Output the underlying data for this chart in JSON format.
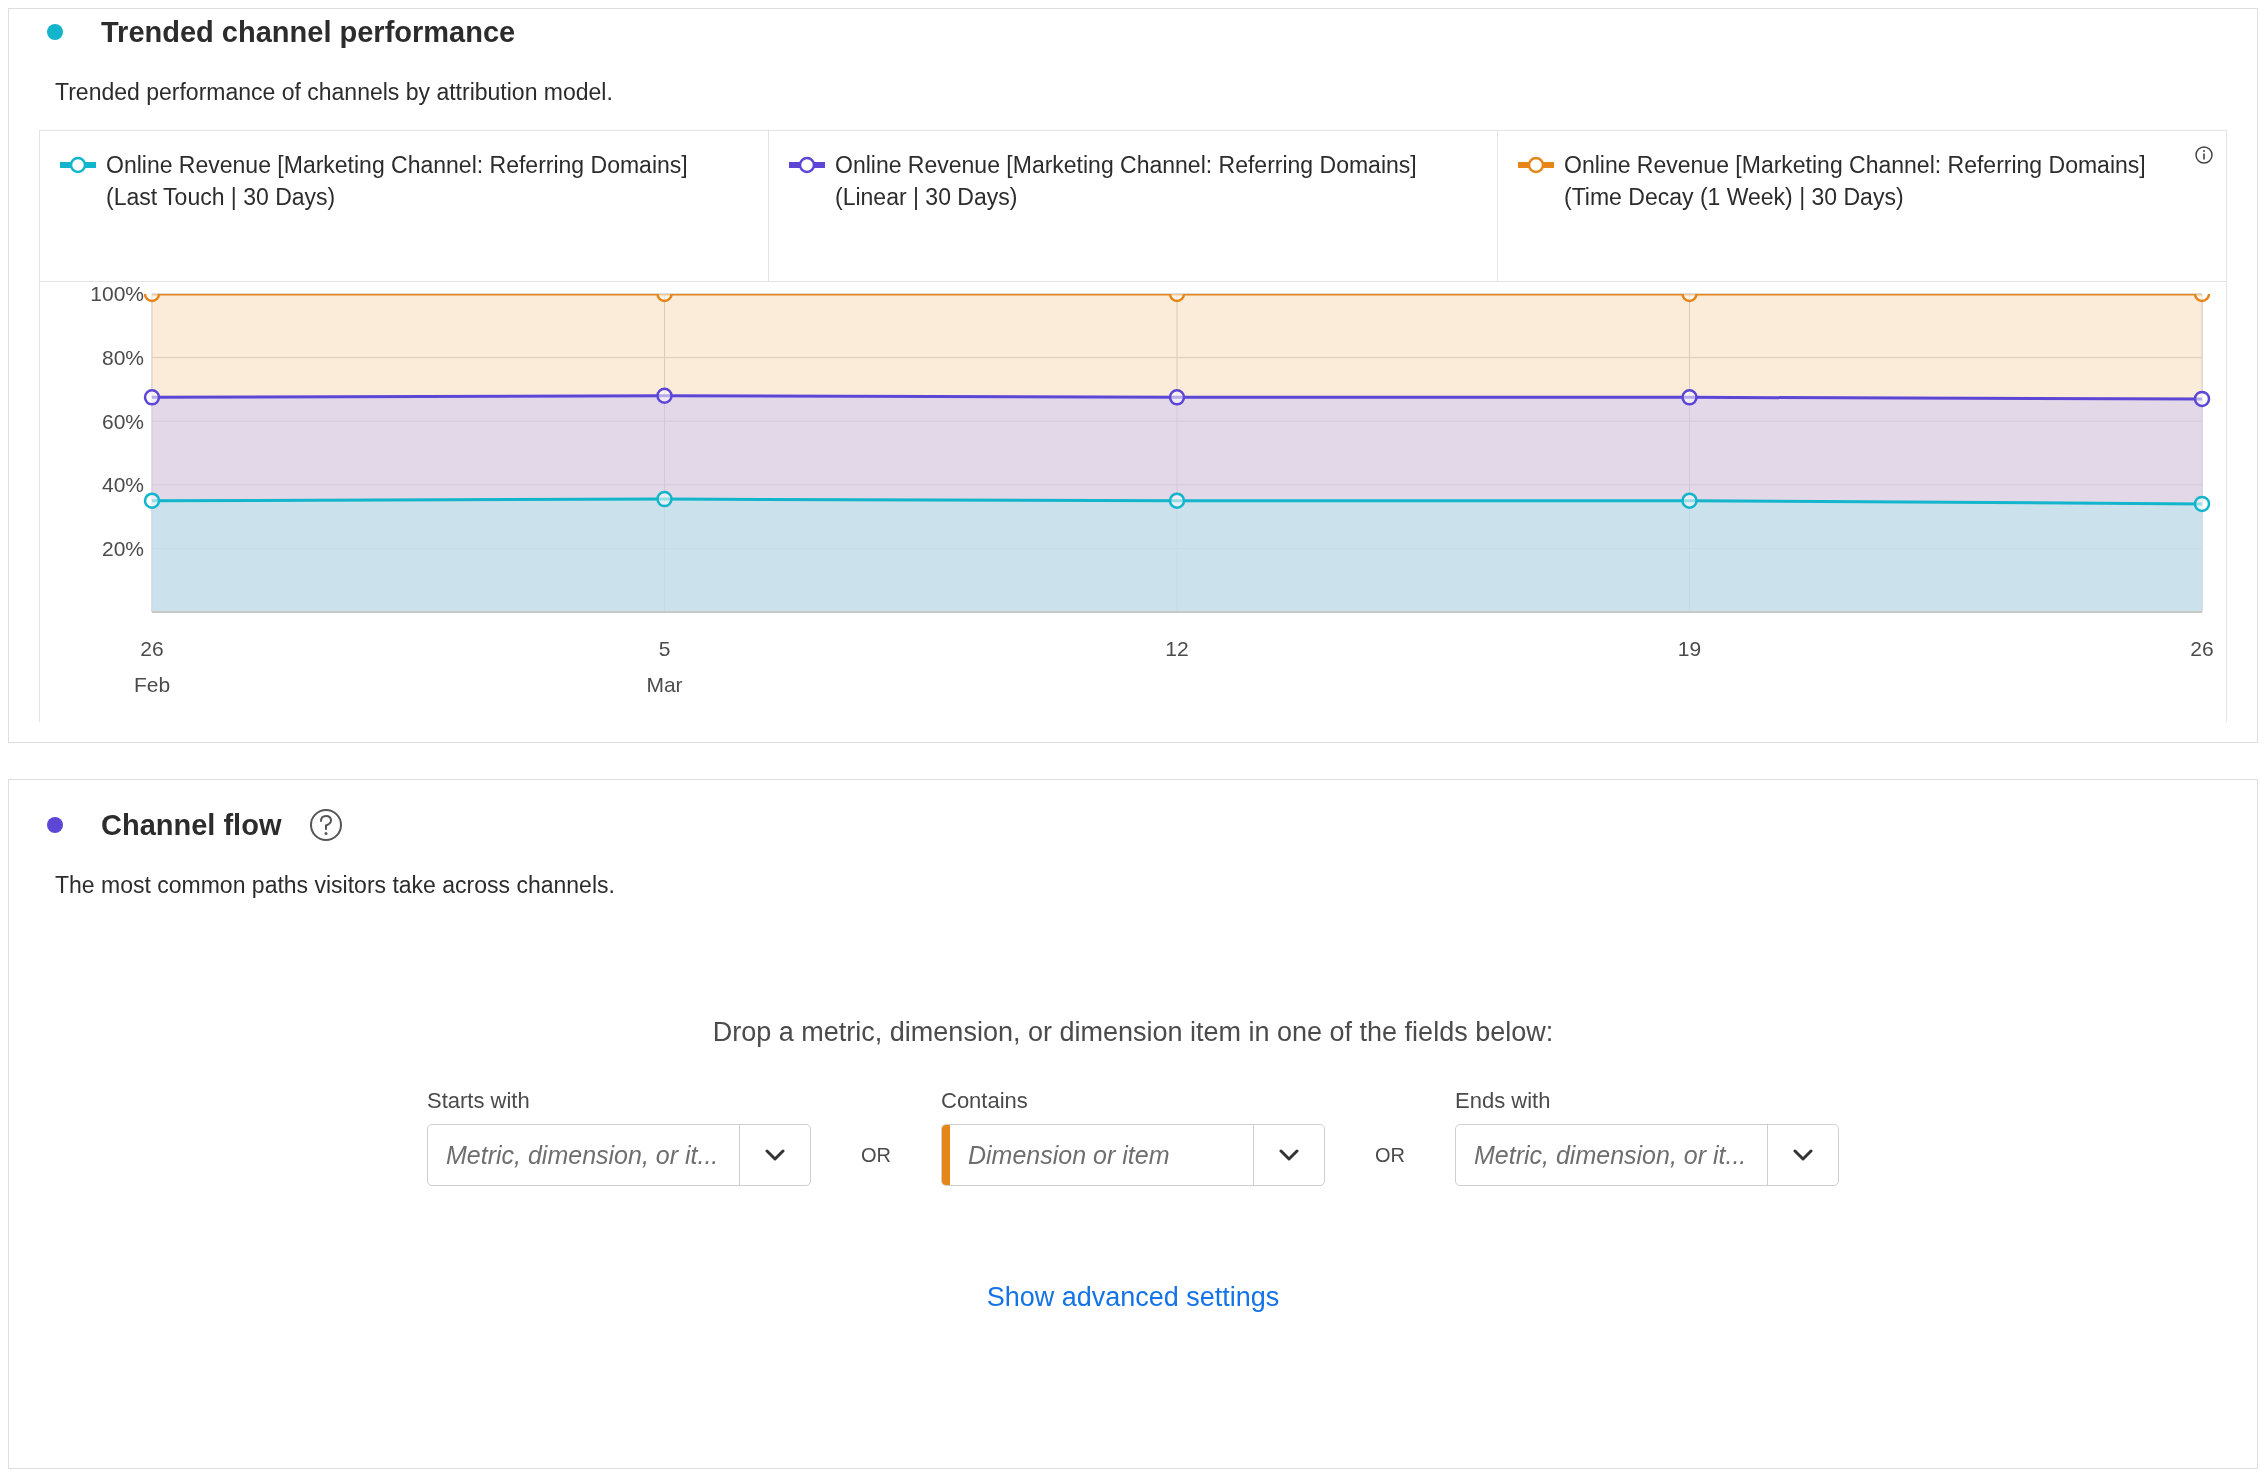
{
  "chart_data": [
    {
      "type": "area",
      "title": "Trended channel performance",
      "subtitle": "Trended performance of channels by attribution model.",
      "categories": [
        "26\nFeb",
        "5\nMar",
        "12",
        "19",
        "26"
      ],
      "series": [
        {
          "name": "Online Revenue [Marketing Channel: Referring Domains] (Last Touch | 30 Days)",
          "color": "#12b5cb",
          "values": [
            35,
            35.5,
            35,
            35,
            34
          ]
        },
        {
          "name": "Online Revenue [Marketing Channel: Referring Domains] (Linear | 30 Days)",
          "color": "#5c46d6",
          "values": [
            67.5,
            68,
            67.5,
            67.5,
            67
          ]
        },
        {
          "name": "Online Revenue [Marketing Channel: Referring Domains] (Time Decay (1 Week) | 30 Days)",
          "color": "#e68619",
          "values": [
            100,
            100,
            100,
            100,
            100
          ]
        }
      ],
      "ylim": [
        0,
        100
      ],
      "yticks": [
        {
          "value": 20,
          "label": "20%"
        },
        {
          "value": 40,
          "label": "40%"
        },
        {
          "value": 60,
          "label": "60%"
        },
        {
          "value": 80,
          "label": "80%"
        },
        {
          "value": 100,
          "label": "100%"
        }
      ],
      "grid": true,
      "legend": "top",
      "marker": "circle"
    },
    {
      "type": "other",
      "title": "Channel flow",
      "subtitle": "The most common paths visitors take across channels.",
      "annotations": [
        "Drop a metric, dimension, or dimension item in one of the fields below:",
        "Starts with",
        "Metric, dimension, or it...",
        "OR",
        "Contains",
        "Dimension or item",
        "OR",
        "Ends with",
        "Metric, dimension, or it...",
        "Show advanced settings"
      ]
    }
  ]
}
